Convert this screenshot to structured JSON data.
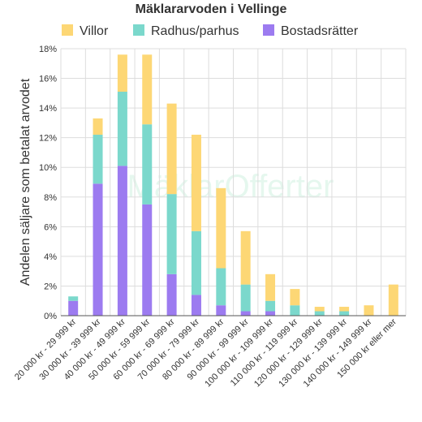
{
  "chart_data": {
    "type": "bar",
    "stacked": true,
    "title": "Mäklararvoden i Vellinge",
    "ylabel": "Andelen säljare som betalat arvodet",
    "xlabel": "",
    "ylim": [
      0,
      18
    ],
    "y_ticks": [
      0,
      2,
      4,
      6,
      8,
      10,
      12,
      14,
      16,
      18
    ],
    "y_tick_suffix": "%",
    "grid": true,
    "legend_position": "top",
    "watermark": "MäklarOfferter",
    "categories": [
      "20 000 kr - 29 999 kr",
      "30 000 kr - 39 999 kr",
      "40 000 kr - 49 999 kr",
      "50 000 kr - 59 999 kr",
      "60 000 kr - 69 999 kr",
      "70 000 kr - 79 999 kr",
      "80 000 kr - 89 999 kr",
      "90 000 kr - 99 999 kr",
      "100 000 kr - 109 999 kr",
      "110 000 kr - 119 999 kr",
      "120 000 kr - 129 999 kr",
      "130 000 kr - 139 999 kr",
      "140 000 kr - 149 999 kr",
      "150 000 kr eller mer"
    ],
    "series": [
      {
        "name": "Bostadsrätter",
        "color": "#9c7bf0",
        "values": [
          1.0,
          8.9,
          10.1,
          7.5,
          2.8,
          1.4,
          0.7,
          0.3,
          0.3,
          0,
          0,
          0,
          0,
          0
        ]
      },
      {
        "name": "Radhus/parhus",
        "color": "#7bd8cc",
        "values": [
          0.3,
          3.3,
          5.0,
          5.4,
          5.4,
          4.3,
          2.5,
          1.8,
          0.7,
          0.7,
          0.3,
          0.3,
          0,
          0
        ]
      },
      {
        "name": "Villor",
        "color": "#fdd775",
        "values": [
          0,
          1.1,
          2.5,
          4.7,
          6.1,
          6.5,
          5.4,
          3.6,
          1.8,
          1.1,
          0.3,
          0.3,
          0.7,
          2.1
        ]
      }
    ],
    "legend_order": [
      "Villor",
      "Radhus/parhus",
      "Bostadsrätter"
    ]
  }
}
